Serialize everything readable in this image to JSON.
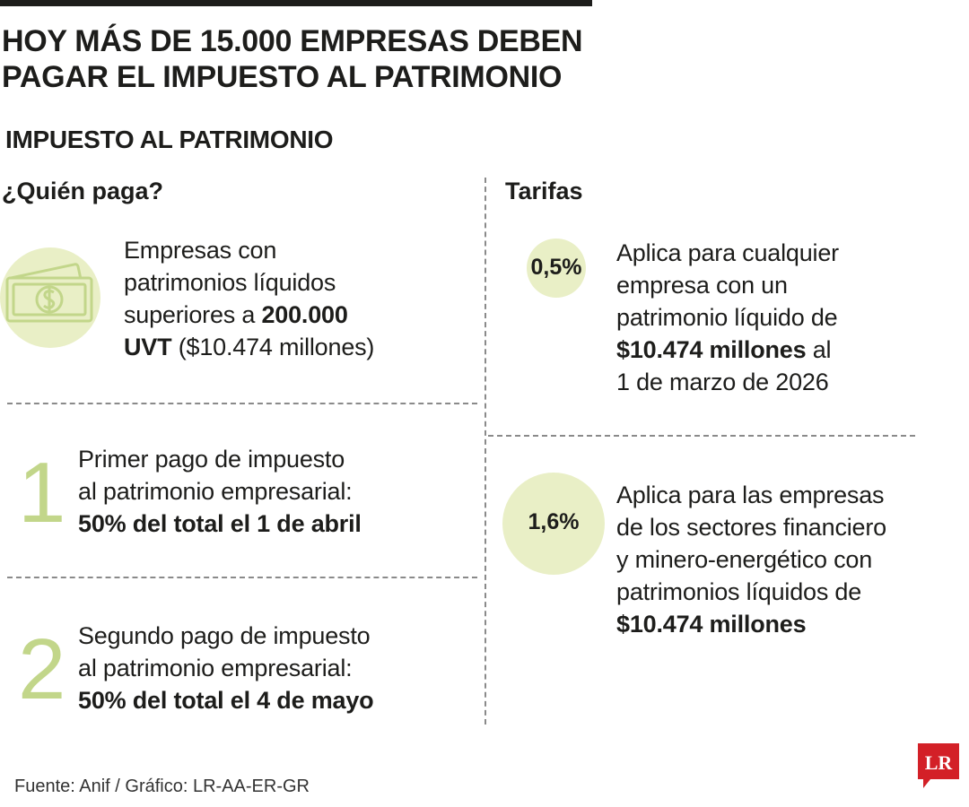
{
  "headline": {
    "line1": "HOY MÁS DE 15.000 EMPRESAS DEBEN",
    "line2": "PAGAR EL IMPUESTO AL PATRIMONIO"
  },
  "section_title": "IMPUESTO AL PATRIMONIO",
  "left": {
    "title": "¿Quién paga?",
    "who": {
      "icon": "money-bill-icon",
      "line1": "Empresas con",
      "line2": "patrimonios líquidos",
      "line3_pre": "superiores a ",
      "line3_bold": "200.000",
      "line4_bold": "UVT",
      "line4_rest": " ($10.474 millones)"
    },
    "payments": [
      {
        "number": "1",
        "line1": "Primer pago de impuesto",
        "line2": "al patrimonio empresarial:",
        "line3_bold": "50% del total el 1 de abril"
      },
      {
        "number": "2",
        "line1": "Segundo pago de impuesto",
        "line2": "al patrimonio empresarial:",
        "line3_bold": "50% del total el 4 de mayo"
      }
    ]
  },
  "right": {
    "title": "Tarifas",
    "rates": [
      {
        "rate": "0,5%",
        "line1": "Aplica para cualquier",
        "line2": "empresa con un",
        "line3": "patrimonio líquido de",
        "line4_bold": "$10.474 millones",
        "line4_rest": " al",
        "line5": "1 de marzo de 2026"
      },
      {
        "rate": "1,6%",
        "line1": "Aplica para las empresas",
        "line2": "de los sectores financiero",
        "line3": "y minero-energético con",
        "line4": "patrimonios líquidos de",
        "line5_bold": "$10.474 millones"
      }
    ]
  },
  "footer": {
    "source": "Fuente: Anif / Gráfico: LR-AA-ER-GR",
    "logo_text": "LR"
  },
  "colors": {
    "accent_green": "#c2d68a",
    "circle_fill": "#e9efc6",
    "logo_red": "#d32027",
    "text": "#1d1d1b"
  }
}
